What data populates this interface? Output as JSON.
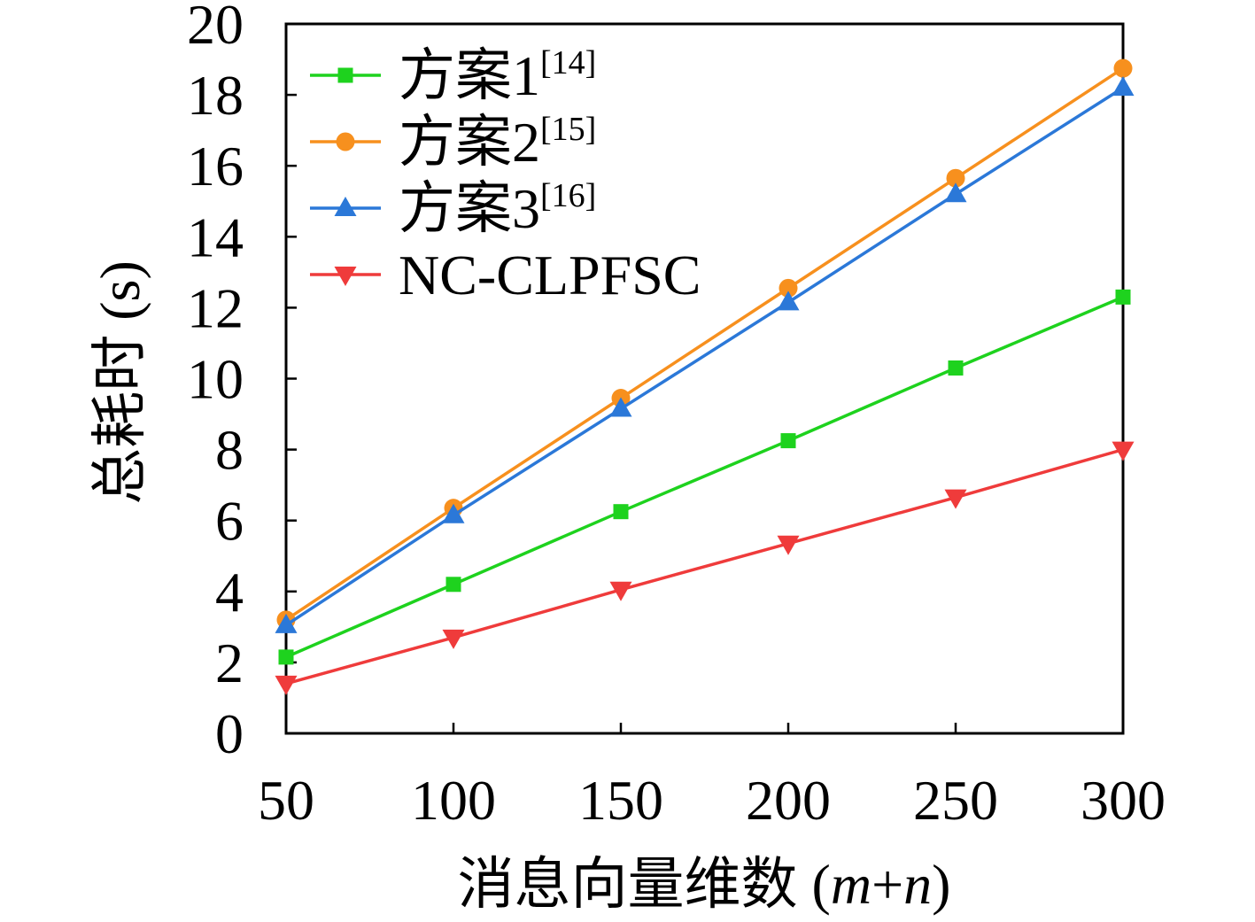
{
  "chart_data": {
    "type": "line",
    "xlabel": "消息向量维数 (m+n)",
    "ylabel": "总耗时 (s)",
    "x": [
      50,
      100,
      150,
      200,
      250,
      300
    ],
    "xlim": [
      50,
      300
    ],
    "ylim": [
      0,
      20
    ],
    "xticks": [
      50,
      100,
      150,
      200,
      250,
      300
    ],
    "yticks": [
      0,
      2,
      4,
      6,
      8,
      10,
      12,
      14,
      16,
      18,
      20
    ],
    "grid": false,
    "legend": "top-left",
    "series": [
      {
        "name": "方案1",
        "ref": "[14]",
        "color": "#1ed21e",
        "marker": "square-marker",
        "values": [
          2.15,
          4.2,
          6.25,
          8.25,
          10.3,
          12.3
        ]
      },
      {
        "name": "方案2",
        "ref": "[15]",
        "color": "#f7901e",
        "marker": "circle-marker",
        "values": [
          3.2,
          6.35,
          9.45,
          12.55,
          15.65,
          18.75
        ]
      },
      {
        "name": "方案3",
        "ref": "[16]",
        "color": "#2b78d8",
        "marker": "triangle-up-marker",
        "values": [
          3.05,
          6.15,
          9.15,
          12.15,
          15.2,
          18.2
        ]
      },
      {
        "name": "NC-CLPFSC",
        "color": "#ef3b3b",
        "marker": "triangle-down-marker",
        "values": [
          1.4,
          2.7,
          4.05,
          5.35,
          6.65,
          8.0
        ]
      }
    ]
  }
}
